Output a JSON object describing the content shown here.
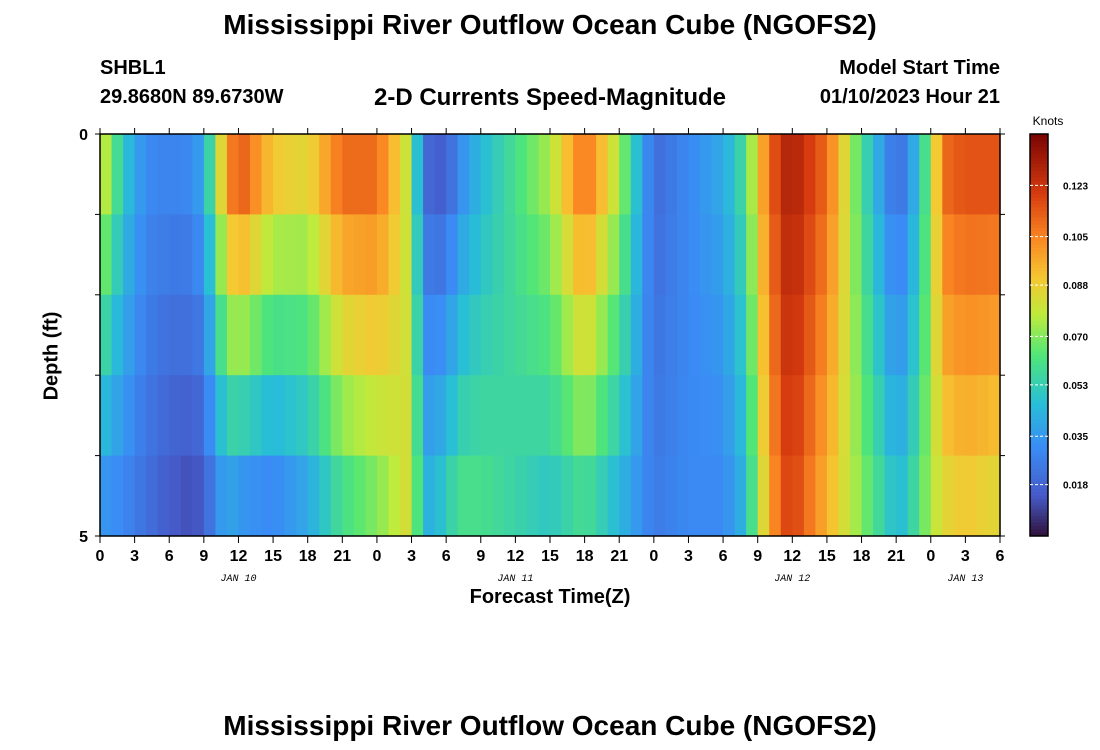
{
  "title": "Mississippi River Outflow Ocean Cube (NGOFS2)",
  "title_repeat": "Mississippi River Outflow Ocean Cube (NGOFS2)",
  "station": {
    "id": "SHBL1",
    "coords": "29.8680N  89.6730W"
  },
  "subtitle": "2-D Currents Speed-Magnitude",
  "model_start": {
    "label": "Model Start Time",
    "value": "01/10/2023 Hour 21"
  },
  "chart_data": {
    "type": "heatmap",
    "title": "2-D Currents Speed-Magnitude",
    "xlabel": "Forecast Time(Z)",
    "ylabel": "Depth (ft)",
    "units": "Knots",
    "x_tick_labels": [
      "0",
      "3",
      "6",
      "9",
      "12",
      "15",
      "18",
      "21",
      "0",
      "3",
      "6",
      "9",
      "12",
      "15",
      "18",
      "21",
      "0",
      "3",
      "6",
      "9",
      "12",
      "15",
      "18",
      "21",
      "0",
      "3",
      "6"
    ],
    "date_labels": [
      {
        "label": "JAN 10",
        "hour_index": 12
      },
      {
        "label": "JAN 11",
        "hour_index": 36
      },
      {
        "label": "JAN 12",
        "hour_index": 60
      },
      {
        "label": "JAN 13",
        "hour_index": 75
      }
    ],
    "x_range_hours": [
      0,
      78
    ],
    "y_tick_labels": [
      "0",
      "5"
    ],
    "ylim": [
      0,
      5
    ],
    "colorbar": {
      "label": "Knots",
      "range": [
        0.0,
        0.141
      ],
      "ticks": [
        "0.123",
        "0.105",
        "0.088",
        "0.070",
        "0.053",
        "0.035",
        "0.018"
      ],
      "tick_values": [
        0.123,
        0.105,
        0.088,
        0.07,
        0.053,
        0.035,
        0.018
      ]
    },
    "control_points": {
      "hours": [
        0,
        2,
        4,
        6,
        8,
        9,
        10,
        11,
        12,
        15,
        18,
        21,
        24,
        27,
        28,
        30,
        31,
        33,
        36,
        39,
        42,
        45,
        48,
        51,
        54,
        56,
        57,
        59,
        60,
        63,
        66,
        69,
        70,
        72,
        73,
        75,
        78
      ],
      "surface": [
        0.085,
        0.05,
        0.03,
        0.028,
        0.03,
        0.04,
        0.07,
        0.1,
        0.115,
        0.09,
        0.085,
        0.11,
        0.11,
        0.075,
        0.02,
        0.015,
        0.03,
        0.045,
        0.06,
        0.075,
        0.11,
        0.075,
        0.02,
        0.03,
        0.04,
        0.06,
        0.09,
        0.125,
        0.13,
        0.11,
        0.06,
        0.02,
        0.03,
        0.07,
        0.11,
        0.115,
        0.115
      ],
      "bottom": [
        0.035,
        0.03,
        0.022,
        0.015,
        0.012,
        0.015,
        0.03,
        0.04,
        0.035,
        0.03,
        0.04,
        0.06,
        0.07,
        0.085,
        0.04,
        0.05,
        0.06,
        0.06,
        0.055,
        0.05,
        0.06,
        0.045,
        0.025,
        0.03,
        0.03,
        0.045,
        0.075,
        0.115,
        0.12,
        0.095,
        0.07,
        0.045,
        0.05,
        0.075,
        0.085,
        0.09,
        0.085
      ]
    }
  }
}
